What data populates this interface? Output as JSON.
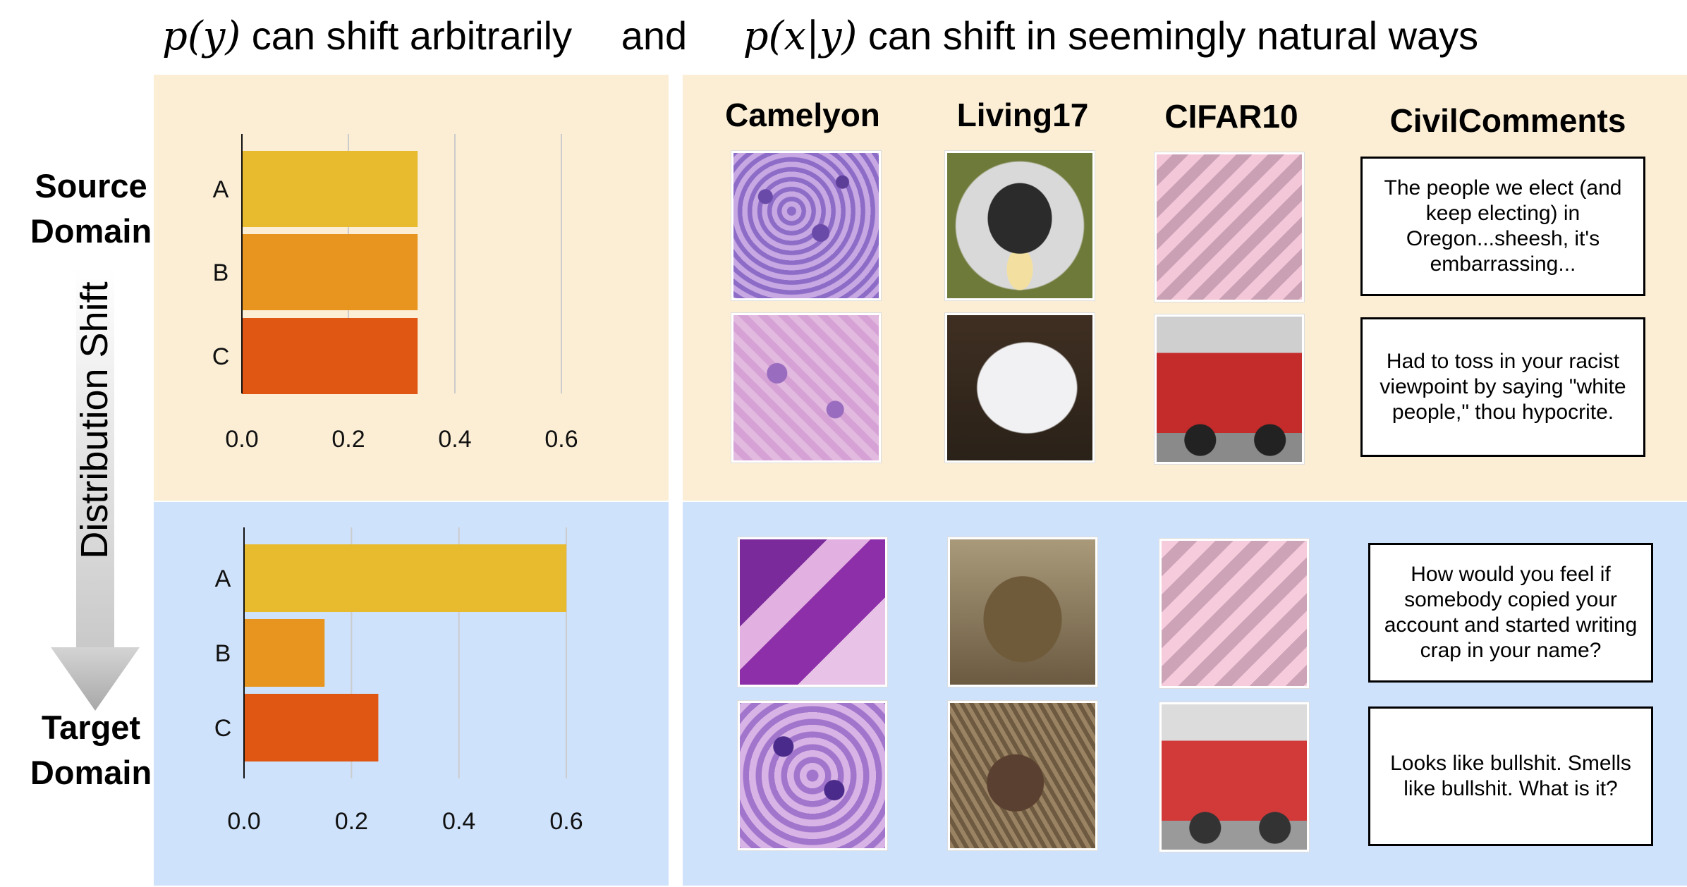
{
  "title": {
    "py": "p(y)",
    "py_text": "can shift arbitrarily",
    "and": "and",
    "pxy": "p(x|y)",
    "pxy_text": "can shift in seemingly natural ways"
  },
  "left": {
    "source_domain": "Source Domain",
    "target_domain": "Target Domain",
    "shift_label": "Distribution Shift"
  },
  "datasets": [
    "Camelyon",
    "Living17",
    "CIFAR10",
    "CivilComments"
  ],
  "comments": {
    "source": [
      "The people we elect (and keep electing) in Oregon...sheesh, it's embarrassing...",
      "Had to toss in your racist viewpoint by saying \"white people,\" thou hypocrite."
    ],
    "target": [
      "How would you feel if somebody copied your account and started writing crap in your name?",
      "Looks like bullshit. Smells like bullshit. What is it?"
    ]
  },
  "colors": {
    "A": "#e8ba2e",
    "B": "#e8951f",
    "C": "#e05713",
    "source_bg": "#fbeed5",
    "target_bg": "#cfe2fb"
  },
  "chart_data": [
    {
      "type": "bar",
      "orientation": "horizontal",
      "categories": [
        "A",
        "B",
        "C"
      ],
      "values": [
        0.33,
        0.33,
        0.33
      ],
      "xticks": [
        "0.0",
        "0.2",
        "0.4",
        "0.6"
      ],
      "xlim": [
        0,
        0.6
      ],
      "grid": true
    },
    {
      "type": "bar",
      "orientation": "horizontal",
      "categories": [
        "A",
        "B",
        "C"
      ],
      "values": [
        0.6,
        0.15,
        0.25
      ],
      "xticks": [
        "0.0",
        "0.2",
        "0.4",
        "0.6"
      ],
      "xlim": [
        0,
        0.6
      ],
      "grid": true
    }
  ]
}
